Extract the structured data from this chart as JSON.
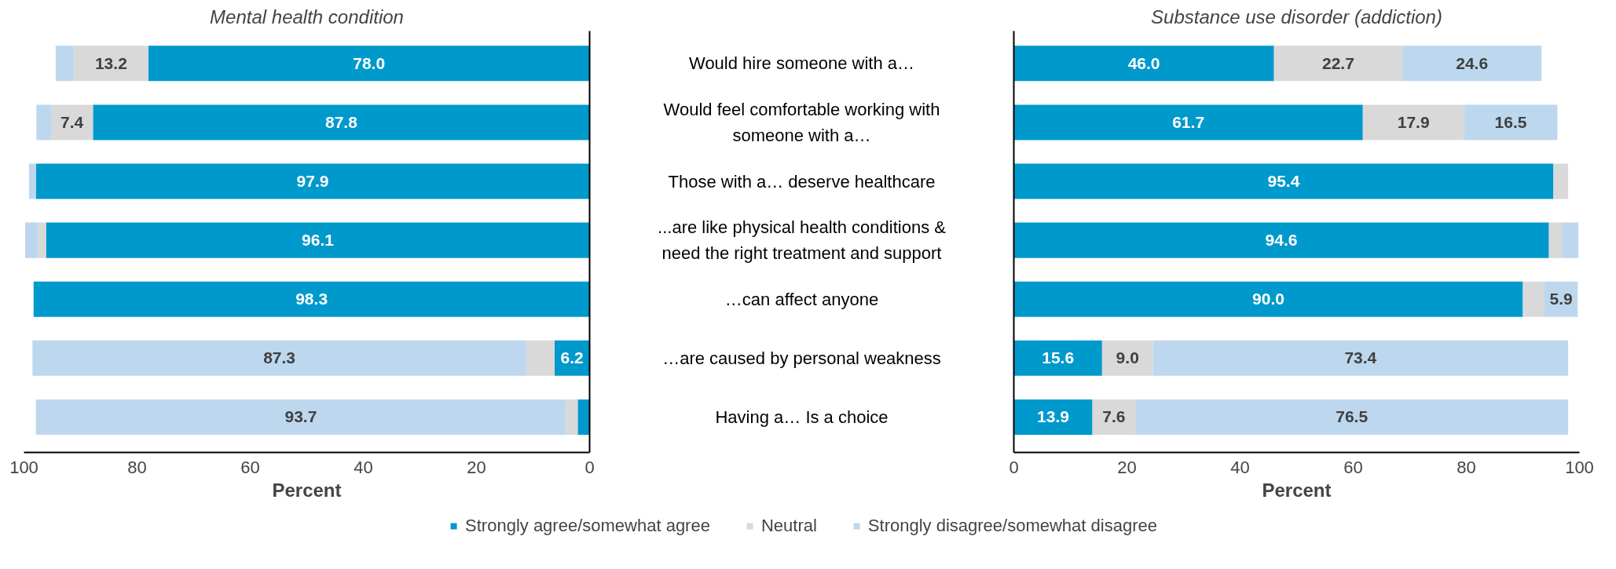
{
  "chart_data": [
    {
      "type": "bar",
      "orientation": "horizontal",
      "stacked": true,
      "title": "Mental health condition",
      "xlabel": "Percent",
      "categories": [
        "Would hire someone with a…",
        "Would feel comfortable working with someone with a…",
        "Those with a… deserve healthcare",
        "...are like physical health conditions & need the right treatment and support",
        "…can affect anyone",
        "…are caused by personal weakness",
        "Having a… Is a choice"
      ],
      "series": [
        {
          "name": "Strongly agree/somewhat agree",
          "color": "#0099cc",
          "values": [
            78.0,
            87.8,
            97.9,
            96.1,
            98.3,
            6.2,
            2.1
          ],
          "value_labels": [
            "78.0",
            "87.8",
            "97.9",
            "96.1",
            "98.3",
            "6.2",
            null
          ]
        },
        {
          "name": "Neutral",
          "color": "#d9d9d9",
          "values": [
            13.2,
            7.4,
            0,
            1.4,
            0,
            5.0,
            2.1
          ],
          "value_labels": [
            "13.2",
            "7.4",
            null,
            null,
            null,
            null,
            null
          ]
        },
        {
          "name": "Strongly disagree/somewhat disagree",
          "color": "#bdd7ee",
          "values": [
            3.2,
            2.6,
            1.2,
            2.3,
            0,
            87.3,
            93.7
          ],
          "value_labels": [
            null,
            null,
            null,
            null,
            null,
            "87.3",
            "93.7"
          ]
        }
      ],
      "xlim": [
        100,
        0
      ],
      "xticks": [
        100,
        80,
        60,
        40,
        20,
        0
      ],
      "grid": false,
      "legend": "bottom",
      "tick_labels": "x"
    },
    {
      "type": "bar",
      "orientation": "horizontal",
      "stacked": true,
      "title": "Substance use disorder (addiction)",
      "xlabel": "Percent",
      "categories": [
        "Would hire someone with a…",
        "Would feel comfortable working with someone with a…",
        "Those with a… deserve healthcare",
        "...are like physical health conditions & need the right treatment and support",
        "…can affect anyone",
        "…are caused by personal weakness",
        "Having a… Is a choice"
      ],
      "series": [
        {
          "color": "#0099cc",
          "values": [
            46.0,
            61.7,
            95.4,
            94.6,
            90.0,
            15.6,
            13.9
          ],
          "value_labels": [
            "46.0",
            "61.7",
            "95.4",
            "94.6",
            "90.0",
            "15.6",
            "13.9"
          ]
        },
        {
          "color": "#d9d9d9",
          "values": [
            22.7,
            17.9,
            2.6,
            2.3,
            3.8,
            9.0,
            7.6
          ],
          "value_labels": [
            "22.7",
            "17.9",
            null,
            null,
            null,
            "9.0",
            "7.6"
          ]
        },
        {
          "color": "#bdd7ee",
          "values": [
            24.6,
            16.5,
            0,
            2.9,
            5.9,
            73.4,
            76.5
          ],
          "value_labels": [
            "24.6",
            "16.5",
            null,
            null,
            "5.9",
            "73.4",
            "76.5"
          ]
        }
      ],
      "xlim": [
        0,
        100
      ],
      "xticks": [
        0,
        20,
        40,
        60,
        80,
        100
      ],
      "grid": false,
      "tick_labels": "x"
    }
  ]
}
